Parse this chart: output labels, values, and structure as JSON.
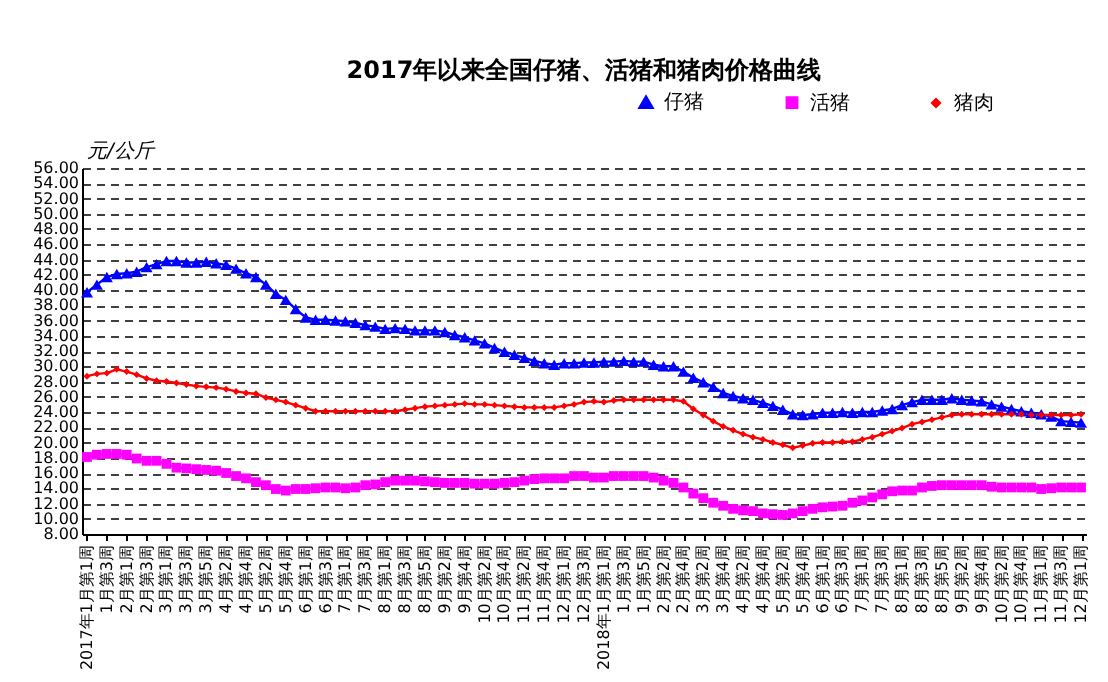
{
  "chart_data": {
    "type": "line",
    "title": "2017年以来全国仔猪、活猪和猪肉价格曲线",
    "ylabel": "元/公斤",
    "categories": [
      "2017年1月第1周",
      null,
      "1月第3周",
      null,
      "2月第1周",
      null,
      "2月第3周",
      null,
      "3月第1周",
      null,
      "3月第3周",
      null,
      "3月第5周",
      null,
      "4月第2周",
      null,
      "4月第4周",
      null,
      "5月第2周",
      null,
      "5月第4周",
      null,
      "6月第1周",
      null,
      "6月第3周",
      null,
      "7月第1周",
      null,
      "7月第3周",
      null,
      "8月第1周",
      null,
      "8月第3周",
      null,
      "8月第5周",
      null,
      "9月第2周",
      null,
      "9月第4周",
      null,
      "10月第2周",
      null,
      "10月第4周",
      null,
      "11月第2周",
      null,
      "11月第4周",
      null,
      "12月第1周",
      null,
      "12月第3周",
      null,
      "2018年1月第1周",
      null,
      "1月第3周",
      null,
      "1月第5周",
      null,
      "2月第2周",
      null,
      "2月第4周",
      null,
      "3月第2周",
      null,
      "3月第4周",
      null,
      "4月第2周",
      null,
      "4月第4周",
      null,
      "5月第2周",
      null,
      "5月第4周",
      null,
      "6月第1周",
      null,
      "6月第3周",
      null,
      "7月第1周",
      null,
      "7月第3周",
      null,
      "8月第1周",
      null,
      "8月第3周",
      null,
      "8月第5周",
      null,
      "9月第2周",
      null,
      "9月第4周",
      null,
      "10月第2周",
      null,
      "10月第4周",
      null,
      "11月第1周",
      null,
      "11月第3周",
      null,
      "12月第1周"
    ],
    "series": [
      {
        "name": "仔猪",
        "color": "#0000ff",
        "marker": "triangle",
        "values": [
          39.7,
          40.7,
          41.7,
          42.1,
          42.2,
          42.4,
          43.0,
          43.4,
          43.8,
          43.8,
          43.6,
          43.6,
          43.7,
          43.5,
          43.3,
          42.8,
          42.2,
          41.7,
          40.7,
          39.5,
          38.7,
          37.5,
          36.4,
          36.1,
          36.1,
          36.0,
          35.9,
          35.7,
          35.4,
          35.2,
          34.9,
          35.0,
          34.9,
          34.7,
          34.7,
          34.7,
          34.5,
          34.1,
          33.8,
          33.4,
          33.0,
          32.4,
          31.9,
          31.5,
          31.1,
          30.7,
          30.4,
          30.2,
          30.4,
          30.4,
          30.5,
          30.5,
          30.6,
          30.6,
          30.7,
          30.6,
          30.6,
          30.2,
          30.0,
          30.0,
          29.3,
          28.5,
          27.9,
          27.3,
          26.5,
          26.1,
          25.8,
          25.6,
          25.2,
          24.8,
          24.3,
          23.7,
          23.6,
          23.7,
          23.9,
          23.9,
          24.0,
          23.9,
          24.0,
          24.0,
          24.2,
          24.4,
          24.9,
          25.3,
          25.6,
          25.6,
          25.6,
          25.8,
          25.6,
          25.5,
          25.4,
          25.0,
          24.7,
          24.4,
          24.1,
          23.9,
          23.7,
          23.4,
          22.8,
          22.7,
          22.6
        ]
      },
      {
        "name": "活猪",
        "color": "#ff00ff",
        "marker": "square",
        "values": [
          18.1,
          18.4,
          18.5,
          18.5,
          18.4,
          17.9,
          17.6,
          17.6,
          17.2,
          16.7,
          16.6,
          16.5,
          16.4,
          16.3,
          16.0,
          15.6,
          15.3,
          14.8,
          14.4,
          13.9,
          13.7,
          13.9,
          13.9,
          14.0,
          14.1,
          14.1,
          14.0,
          14.1,
          14.4,
          14.5,
          14.8,
          15.0,
          15.0,
          15.0,
          14.9,
          14.8,
          14.7,
          14.7,
          14.7,
          14.6,
          14.6,
          14.6,
          14.7,
          14.8,
          15.0,
          15.2,
          15.3,
          15.3,
          15.3,
          15.6,
          15.6,
          15.4,
          15.4,
          15.6,
          15.6,
          15.6,
          15.6,
          15.4,
          15.0,
          14.7,
          14.1,
          13.3,
          12.7,
          12.1,
          11.7,
          11.3,
          11.1,
          11.0,
          10.7,
          10.6,
          10.5,
          10.7,
          11.0,
          11.3,
          11.5,
          11.6,
          11.7,
          12.1,
          12.4,
          12.8,
          13.2,
          13.6,
          13.7,
          13.7,
          14.1,
          14.3,
          14.4,
          14.4,
          14.4,
          14.4,
          14.4,
          14.2,
          14.1,
          14.1,
          14.1,
          14.1,
          13.9,
          14.0,
          14.1,
          14.1,
          14.1
        ]
      },
      {
        "name": "猪肉",
        "color": "#ff0000",
        "marker": "diamond",
        "values": [
          28.7,
          29.0,
          29.1,
          29.6,
          29.3,
          28.9,
          28.4,
          28.1,
          28.0,
          27.8,
          27.6,
          27.4,
          27.3,
          27.2,
          27.0,
          26.7,
          26.5,
          26.4,
          25.9,
          25.6,
          25.3,
          24.9,
          24.5,
          24.1,
          24.1,
          24.1,
          24.1,
          24.1,
          24.1,
          24.1,
          24.1,
          24.1,
          24.3,
          24.5,
          24.7,
          24.8,
          24.9,
          25.0,
          25.1,
          25.0,
          25.0,
          24.9,
          24.8,
          24.7,
          24.6,
          24.6,
          24.6,
          24.6,
          24.8,
          25.0,
          25.3,
          25.4,
          25.3,
          25.5,
          25.6,
          25.6,
          25.6,
          25.6,
          25.6,
          25.6,
          25.4,
          24.4,
          23.6,
          22.8,
          22.1,
          21.6,
          21.1,
          20.7,
          20.4,
          20.0,
          19.7,
          19.3,
          19.6,
          19.9,
          20.0,
          20.0,
          20.1,
          20.1,
          20.4,
          20.7,
          21.1,
          21.5,
          21.9,
          22.4,
          22.7,
          23.0,
          23.3,
          23.6,
          23.7,
          23.7,
          23.7,
          23.7,
          23.7,
          23.7,
          23.7,
          23.6,
          23.6,
          23.6,
          23.6,
          23.6,
          23.7
        ]
      }
    ],
    "ylim": [
      8,
      56
    ],
    "yticks": [
      {
        "value": 8,
        "label": "8.00"
      },
      {
        "value": 10,
        "label": "10.00"
      },
      {
        "value": 12,
        "label": "12.00"
      },
      {
        "value": 14,
        "label": "14.00"
      },
      {
        "value": 16,
        "label": "16.00"
      },
      {
        "value": 18,
        "label": "18.00"
      },
      {
        "value": 20,
        "label": "20.00"
      },
      {
        "value": 22,
        "label": "22.00"
      },
      {
        "value": 24,
        "label": "24.00"
      },
      {
        "value": 26,
        "label": "26.00"
      },
      {
        "value": 28,
        "label": "28.00"
      },
      {
        "value": 30,
        "label": "30.00"
      },
      {
        "value": 32,
        "label": "32.00"
      },
      {
        "value": 34,
        "label": "34.00"
      },
      {
        "value": 36,
        "label": "36.00"
      },
      {
        "value": 38,
        "label": "38.00"
      },
      {
        "value": 40,
        "label": "40.00"
      },
      {
        "value": 42,
        "label": "42.00"
      },
      {
        "value": 44,
        "label": "44.00"
      },
      {
        "value": 46,
        "label": "46.00"
      },
      {
        "value": 48,
        "label": "48.00"
      },
      {
        "value": 50,
        "label": "50.00"
      },
      {
        "value": 52,
        "label": "52.00"
      },
      {
        "value": 54,
        "label": "54.00"
      },
      {
        "value": 56,
        "label": "56.00"
      }
    ],
    "grid": "y",
    "legend": "top right",
    "line_style": "solid"
  }
}
